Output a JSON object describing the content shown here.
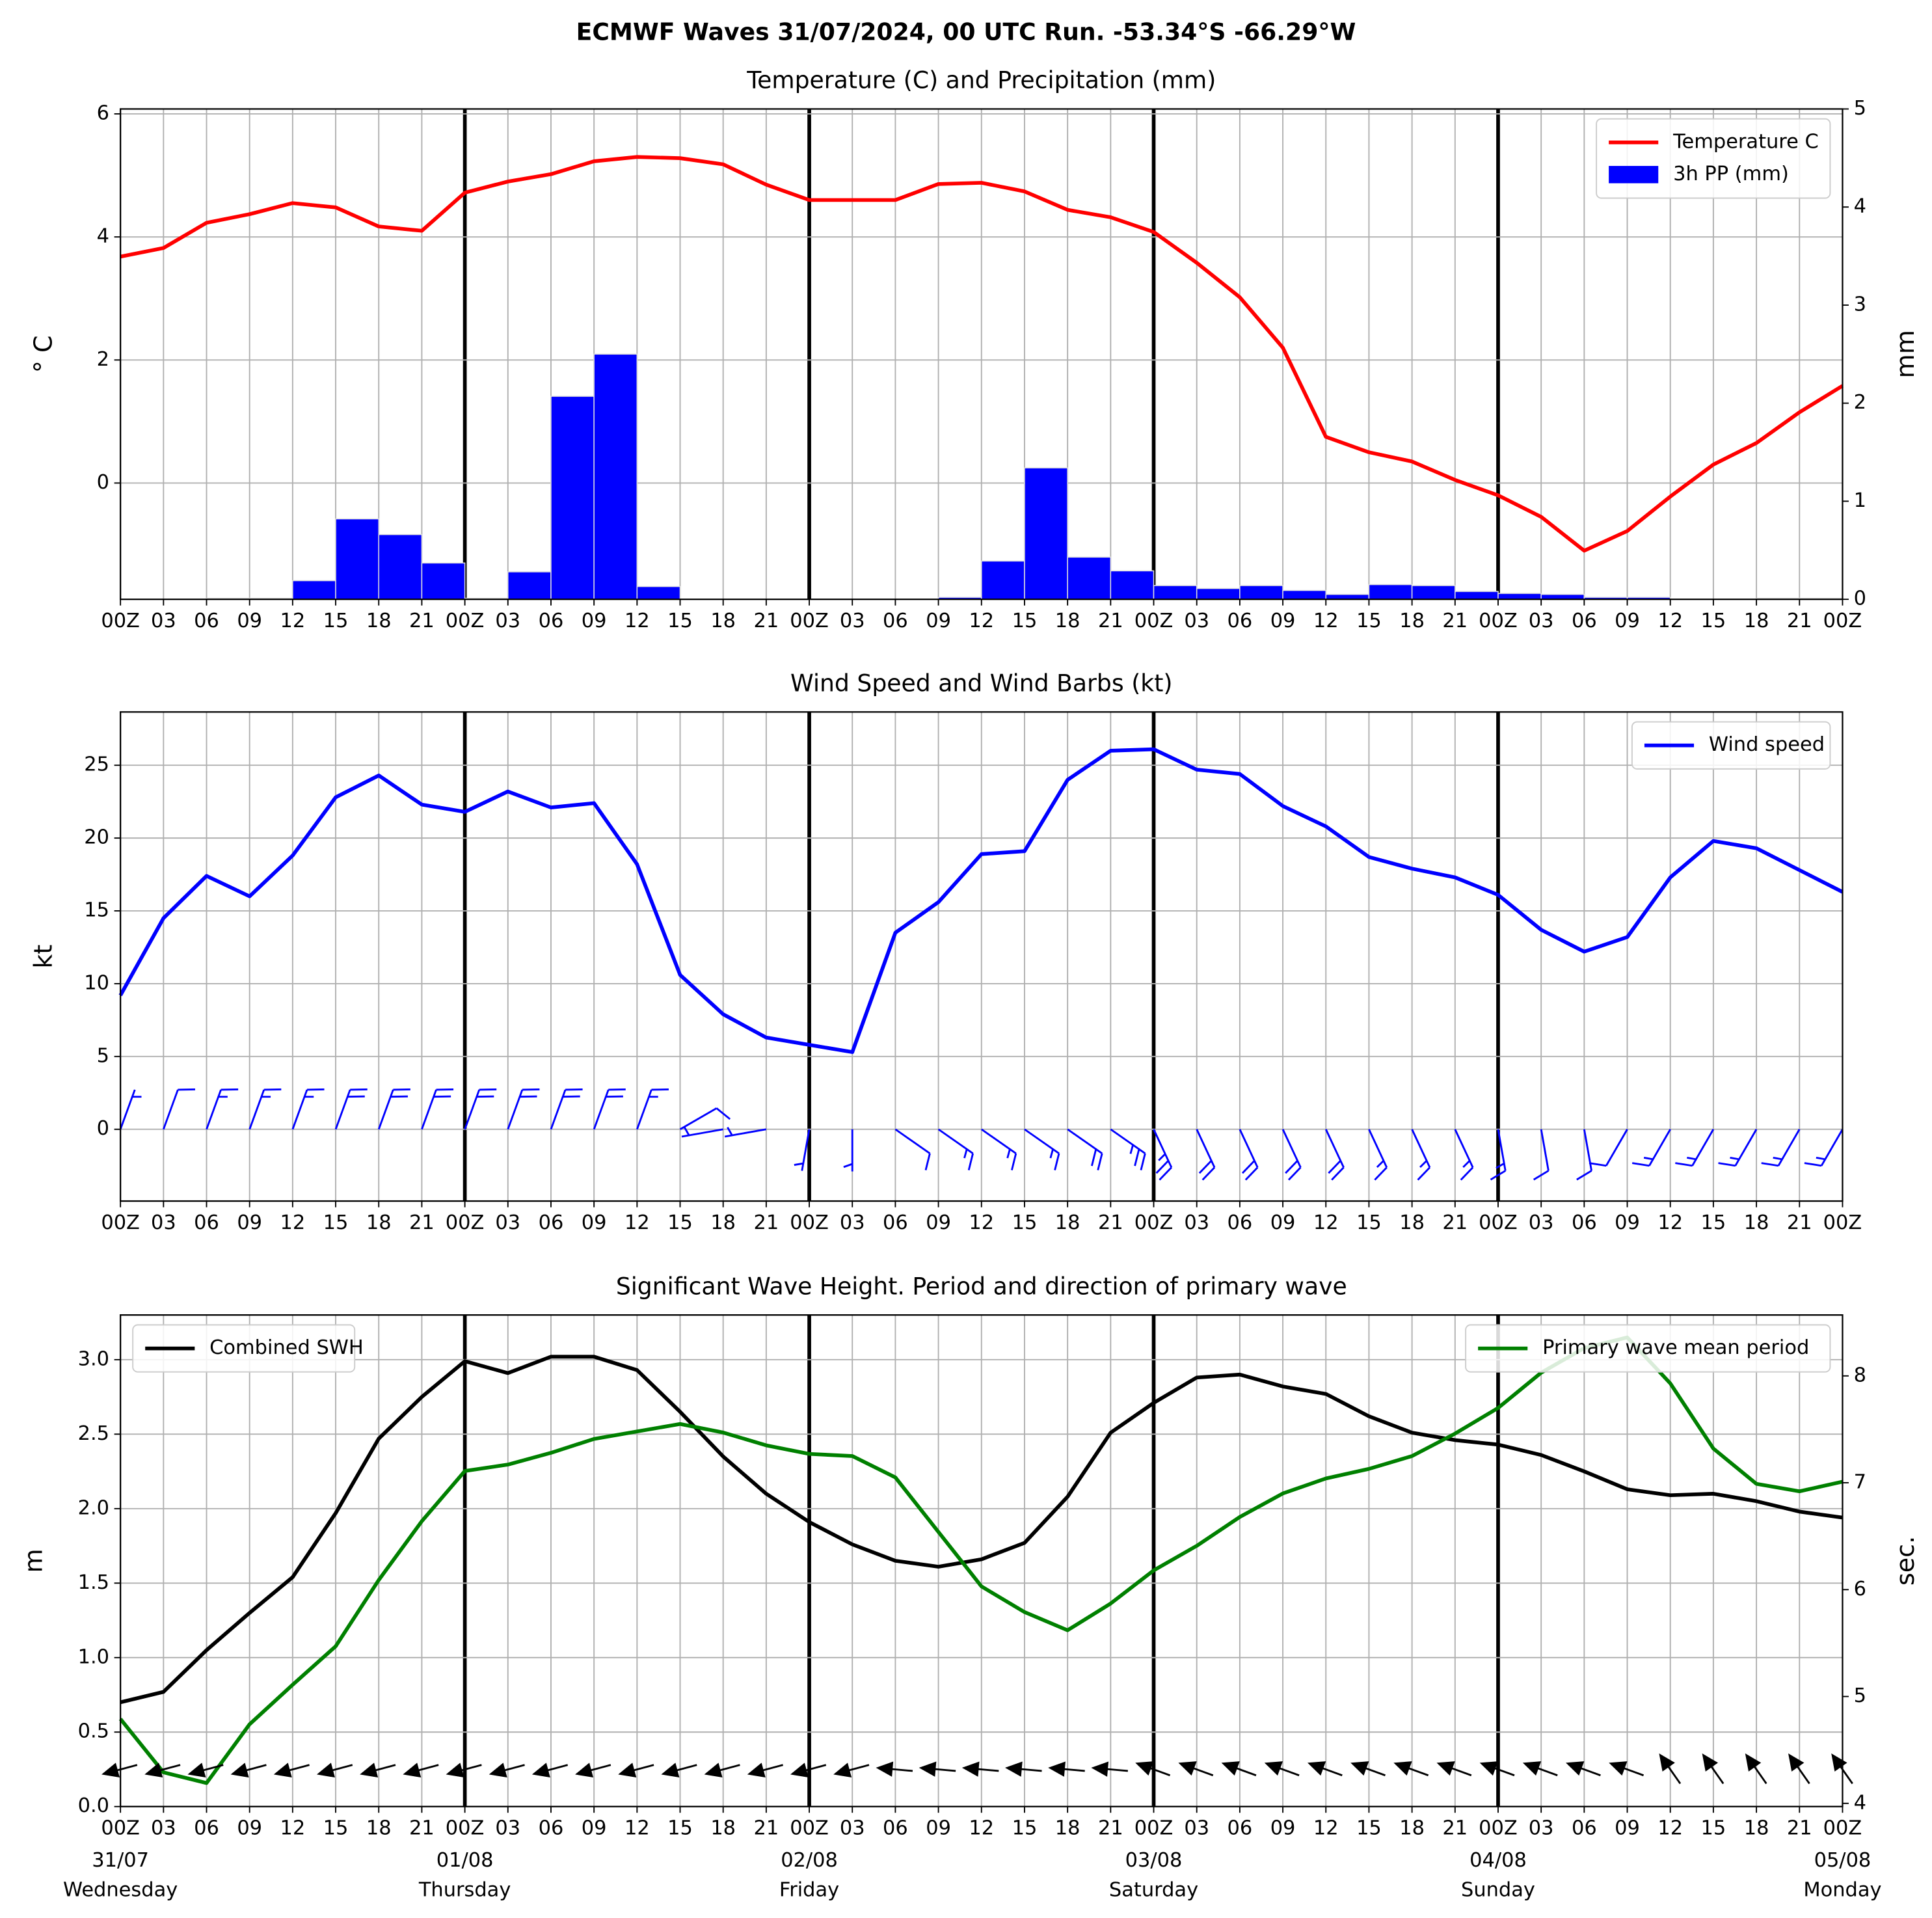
{
  "title": "ECMWF Waves 31/07/2024, 00 UTC Run. -53.34°S -66.29°W",
  "chart_data": [
    {
      "type": "combo",
      "title": "Temperature (C) and Precipitation (mm)",
      "ylabel": "° C",
      "y2label": "mm",
      "categories": [
        "00Z",
        "03",
        "06",
        "09",
        "12",
        "15",
        "18",
        "21",
        "00Z",
        "03",
        "06",
        "09",
        "12",
        "15",
        "18",
        "21",
        "00Z",
        "03",
        "06",
        "09",
        "12",
        "15",
        "18",
        "21",
        "00Z",
        "03",
        "06",
        "09",
        "12",
        "15",
        "18",
        "21",
        "00Z",
        "03",
        "06",
        "09",
        "12",
        "15",
        "18",
        "21",
        "00Z"
      ],
      "series": [
        {
          "name": "Temperature C",
          "type": "line",
          "color": "#ff0000",
          "values": [
            3.68,
            3.82,
            4.23,
            4.37,
            4.55,
            4.48,
            4.17,
            4.1,
            4.72,
            4.9,
            5.02,
            5.23,
            5.3,
            5.28,
            5.18,
            4.85,
            4.6,
            4.6,
            4.6,
            4.86,
            4.88,
            4.74,
            4.44,
            4.32,
            4.08,
            3.58,
            3.02,
            2.2,
            0.75,
            0.5,
            0.35,
            0.05,
            -0.2,
            -0.55,
            -1.1,
            -0.78,
            -0.22,
            0.3,
            0.65,
            1.15,
            1.58
          ]
        },
        {
          "name": "3h PP (mm)",
          "type": "bar",
          "axis": "y2",
          "color": "#0000ff",
          "values": [
            0,
            0,
            0.01,
            0.01,
            0.19,
            0.82,
            0.66,
            0.37,
            0.01,
            0.28,
            2.07,
            2.5,
            0.13,
            0,
            0,
            0,
            0,
            0,
            0,
            0.02,
            0.39,
            1.34,
            0.43,
            0.29,
            0.14,
            0.11,
            0.14,
            0.09,
            0.05,
            0.15,
            0.14,
            0.08,
            0.06,
            0.05,
            0.02,
            0.02,
            0,
            0,
            0.01,
            0.01,
            null
          ]
        }
      ],
      "ylim": [
        -1.89,
        6.08
      ],
      "yticks": [
        0,
        2,
        4,
        6
      ],
      "y2lim": [
        0,
        5
      ],
      "y2ticks": [
        0,
        1,
        2,
        3,
        4,
        5
      ],
      "grid": true,
      "legend": "upper right"
    },
    {
      "type": "line",
      "title": "Wind Speed and Wind Barbs (kt)",
      "ylabel": "kt",
      "categories": [
        "00Z",
        "03",
        "06",
        "09",
        "12",
        "15",
        "18",
        "21",
        "00Z",
        "03",
        "06",
        "09",
        "12",
        "15",
        "18",
        "21",
        "00Z",
        "03",
        "06",
        "09",
        "12",
        "15",
        "18",
        "21",
        "00Z",
        "03",
        "06",
        "09",
        "12",
        "15",
        "18",
        "21",
        "00Z",
        "03",
        "06",
        "09",
        "12",
        "15",
        "18",
        "21",
        "00Z"
      ],
      "series": [
        {
          "name": "Wind speed",
          "color": "#0000ff",
          "values": [
            9.2,
            14.5,
            17.4,
            16.0,
            18.8,
            22.8,
            24.3,
            22.3,
            21.8,
            23.2,
            22.1,
            22.4,
            18.2,
            10.6,
            7.9,
            6.3,
            5.8,
            5.3,
            13.5,
            15.6,
            18.9,
            19.1,
            24.0,
            26.0,
            26.1,
            24.7,
            24.4,
            22.2,
            20.8,
            18.7,
            17.9,
            17.3,
            16.1,
            13.7,
            12.2,
            13.2,
            17.3,
            19.8,
            19.3,
            17.8,
            16.3
          ]
        }
      ],
      "wind_direction": [
        20,
        20,
        20,
        20,
        20,
        20,
        20,
        20,
        20,
        20,
        20,
        20,
        20,
        60,
        260,
        260,
        190,
        180,
        125,
        125,
        125,
        125,
        125,
        125,
        155,
        155,
        155,
        155,
        155,
        155,
        155,
        155,
        170,
        170,
        170,
        210,
        210,
        210,
        210,
        210,
        210
      ],
      "ylim": [
        -4.93,
        28.66
      ],
      "yticks": [
        0,
        5,
        10,
        15,
        20,
        25
      ],
      "grid": true,
      "legend": "upper right"
    },
    {
      "type": "line",
      "title": "Significant Wave Height. Period and direction of primary wave",
      "ylabel": "m",
      "y2label": "sec.",
      "categories": [
        "00Z",
        "03",
        "06",
        "09",
        "12",
        "15",
        "18",
        "21",
        "00Z",
        "03",
        "06",
        "09",
        "12",
        "15",
        "18",
        "21",
        "00Z",
        "03",
        "06",
        "09",
        "12",
        "15",
        "18",
        "21",
        "00Z",
        "03",
        "06",
        "09",
        "12",
        "15",
        "18",
        "21",
        "00Z",
        "03",
        "06",
        "09",
        "12",
        "15",
        "18",
        "21",
        "00Z"
      ],
      "date_labels": [
        "31/07",
        null,
        null,
        null,
        null,
        null,
        null,
        null,
        "01/08",
        null,
        null,
        null,
        null,
        null,
        null,
        null,
        "02/08",
        null,
        null,
        null,
        null,
        null,
        null,
        null,
        "03/08",
        null,
        null,
        null,
        null,
        null,
        null,
        null,
        "04/08",
        null,
        null,
        null,
        null,
        null,
        null,
        null,
        "05/08"
      ],
      "day_labels": [
        "Wednesday",
        null,
        null,
        null,
        null,
        null,
        null,
        null,
        "Thursday",
        null,
        null,
        null,
        null,
        null,
        null,
        null,
        "Friday",
        null,
        null,
        null,
        null,
        null,
        null,
        null,
        "Saturday",
        null,
        null,
        null,
        null,
        null,
        null,
        null,
        "Sunday",
        null,
        null,
        null,
        null,
        null,
        null,
        null,
        "Monday"
      ],
      "series": [
        {
          "name": "Combined SWH",
          "color": "#000000",
          "legend": "upper left",
          "values": [
            0.7,
            0.77,
            1.05,
            1.3,
            1.54,
            1.97,
            2.47,
            2.75,
            2.99,
            2.91,
            3.02,
            3.02,
            2.93,
            2.65,
            2.35,
            2.1,
            1.91,
            1.76,
            1.65,
            1.61,
            1.66,
            1.77,
            2.08,
            2.51,
            2.71,
            2.88,
            2.9,
            2.82,
            2.77,
            2.62,
            2.51,
            2.46,
            2.43,
            2.36,
            2.25,
            2.13,
            2.09,
            2.1,
            2.05,
            1.98,
            1.94
          ]
        },
        {
          "name": "Primary wave mean period",
          "color": "#008000",
          "axis": "y2",
          "legend": "upper right",
          "values": [
            4.79,
            4.29,
            4.19,
            4.74,
            5.11,
            5.47,
            6.09,
            6.64,
            7.11,
            7.17,
            7.28,
            7.41,
            7.48,
            7.55,
            7.47,
            7.35,
            7.27,
            7.25,
            7.05,
            6.54,
            6.03,
            5.79,
            5.62,
            5.87,
            6.18,
            6.41,
            6.68,
            6.9,
            7.04,
            7.13,
            7.25,
            7.46,
            7.7,
            8.03,
            8.26,
            8.36,
            7.93,
            7.32,
            6.99,
            6.92,
            7.01
          ]
        }
      ],
      "wave_direction": [
        195,
        195,
        195,
        195,
        195,
        195,
        195,
        195,
        195,
        195,
        195,
        195,
        195,
        195,
        195,
        195,
        195,
        195,
        175,
        175,
        175,
        175,
        175,
        175,
        160,
        160,
        160,
        160,
        160,
        160,
        160,
        160,
        160,
        160,
        160,
        160,
        125,
        125,
        125,
        125,
        125
      ],
      "ylim": [
        0,
        3.3
      ],
      "yticks": [
        {
          "value": 0,
          "label": "0.0"
        },
        0.5,
        {
          "value": 1,
          "label": "1.0"
        },
        1.5,
        {
          "value": 2,
          "label": "2.0"
        },
        2.5,
        {
          "value": 3,
          "label": "3.0"
        }
      ],
      "y2lim": [
        3.97,
        8.57
      ],
      "y2ticks": [
        4,
        5,
        6,
        7,
        8
      ],
      "grid": true
    }
  ]
}
